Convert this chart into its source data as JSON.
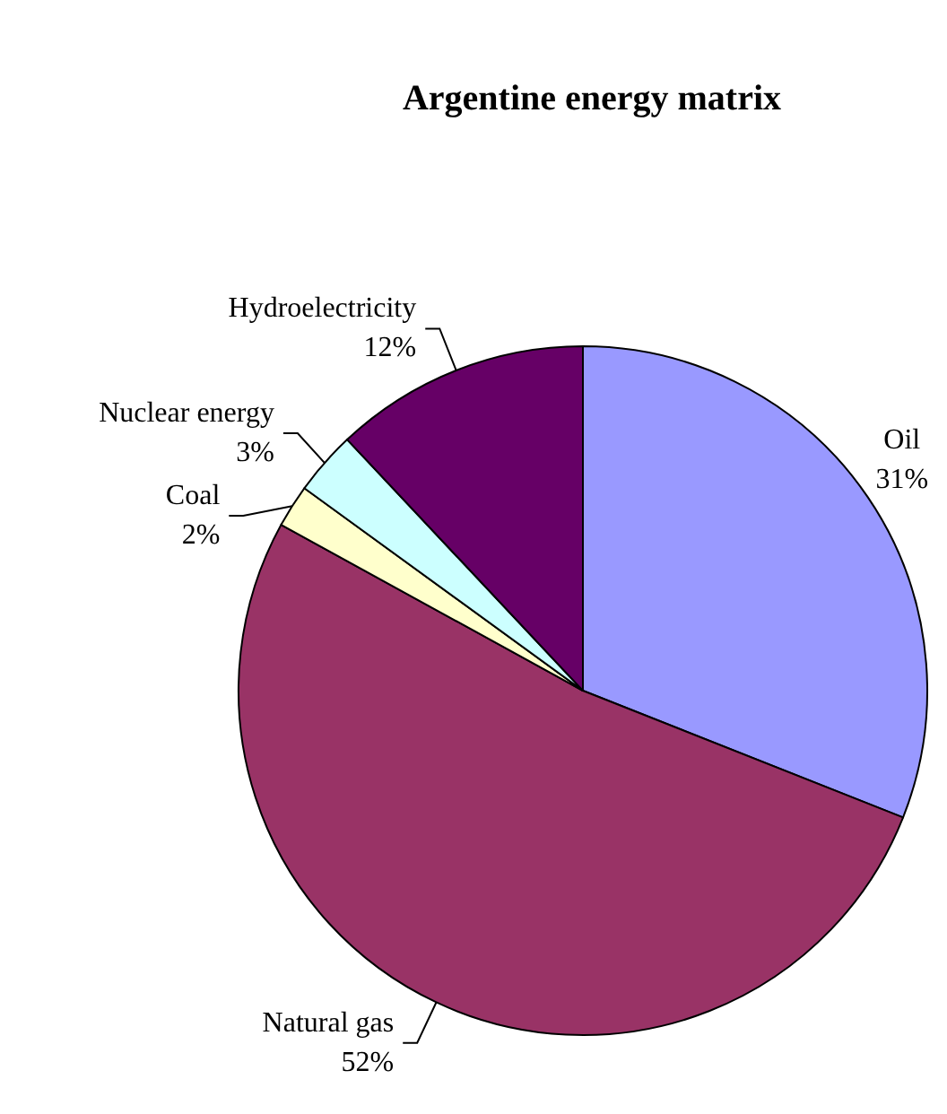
{
  "chart_data": {
    "type": "pie",
    "title": "Argentine energy matrix",
    "categories": [
      "Oil",
      "Natural gas",
      "Coal",
      "Nuclear energy",
      "Hydroelectricity"
    ],
    "values": [
      31,
      52,
      2,
      3,
      12
    ],
    "value_labels": [
      "31%",
      "52%",
      "2%",
      "3%",
      "12%"
    ],
    "colors": [
      "#9999ff",
      "#993366",
      "#ffffcc",
      "#ccffff",
      "#660066"
    ],
    "legend": false
  }
}
